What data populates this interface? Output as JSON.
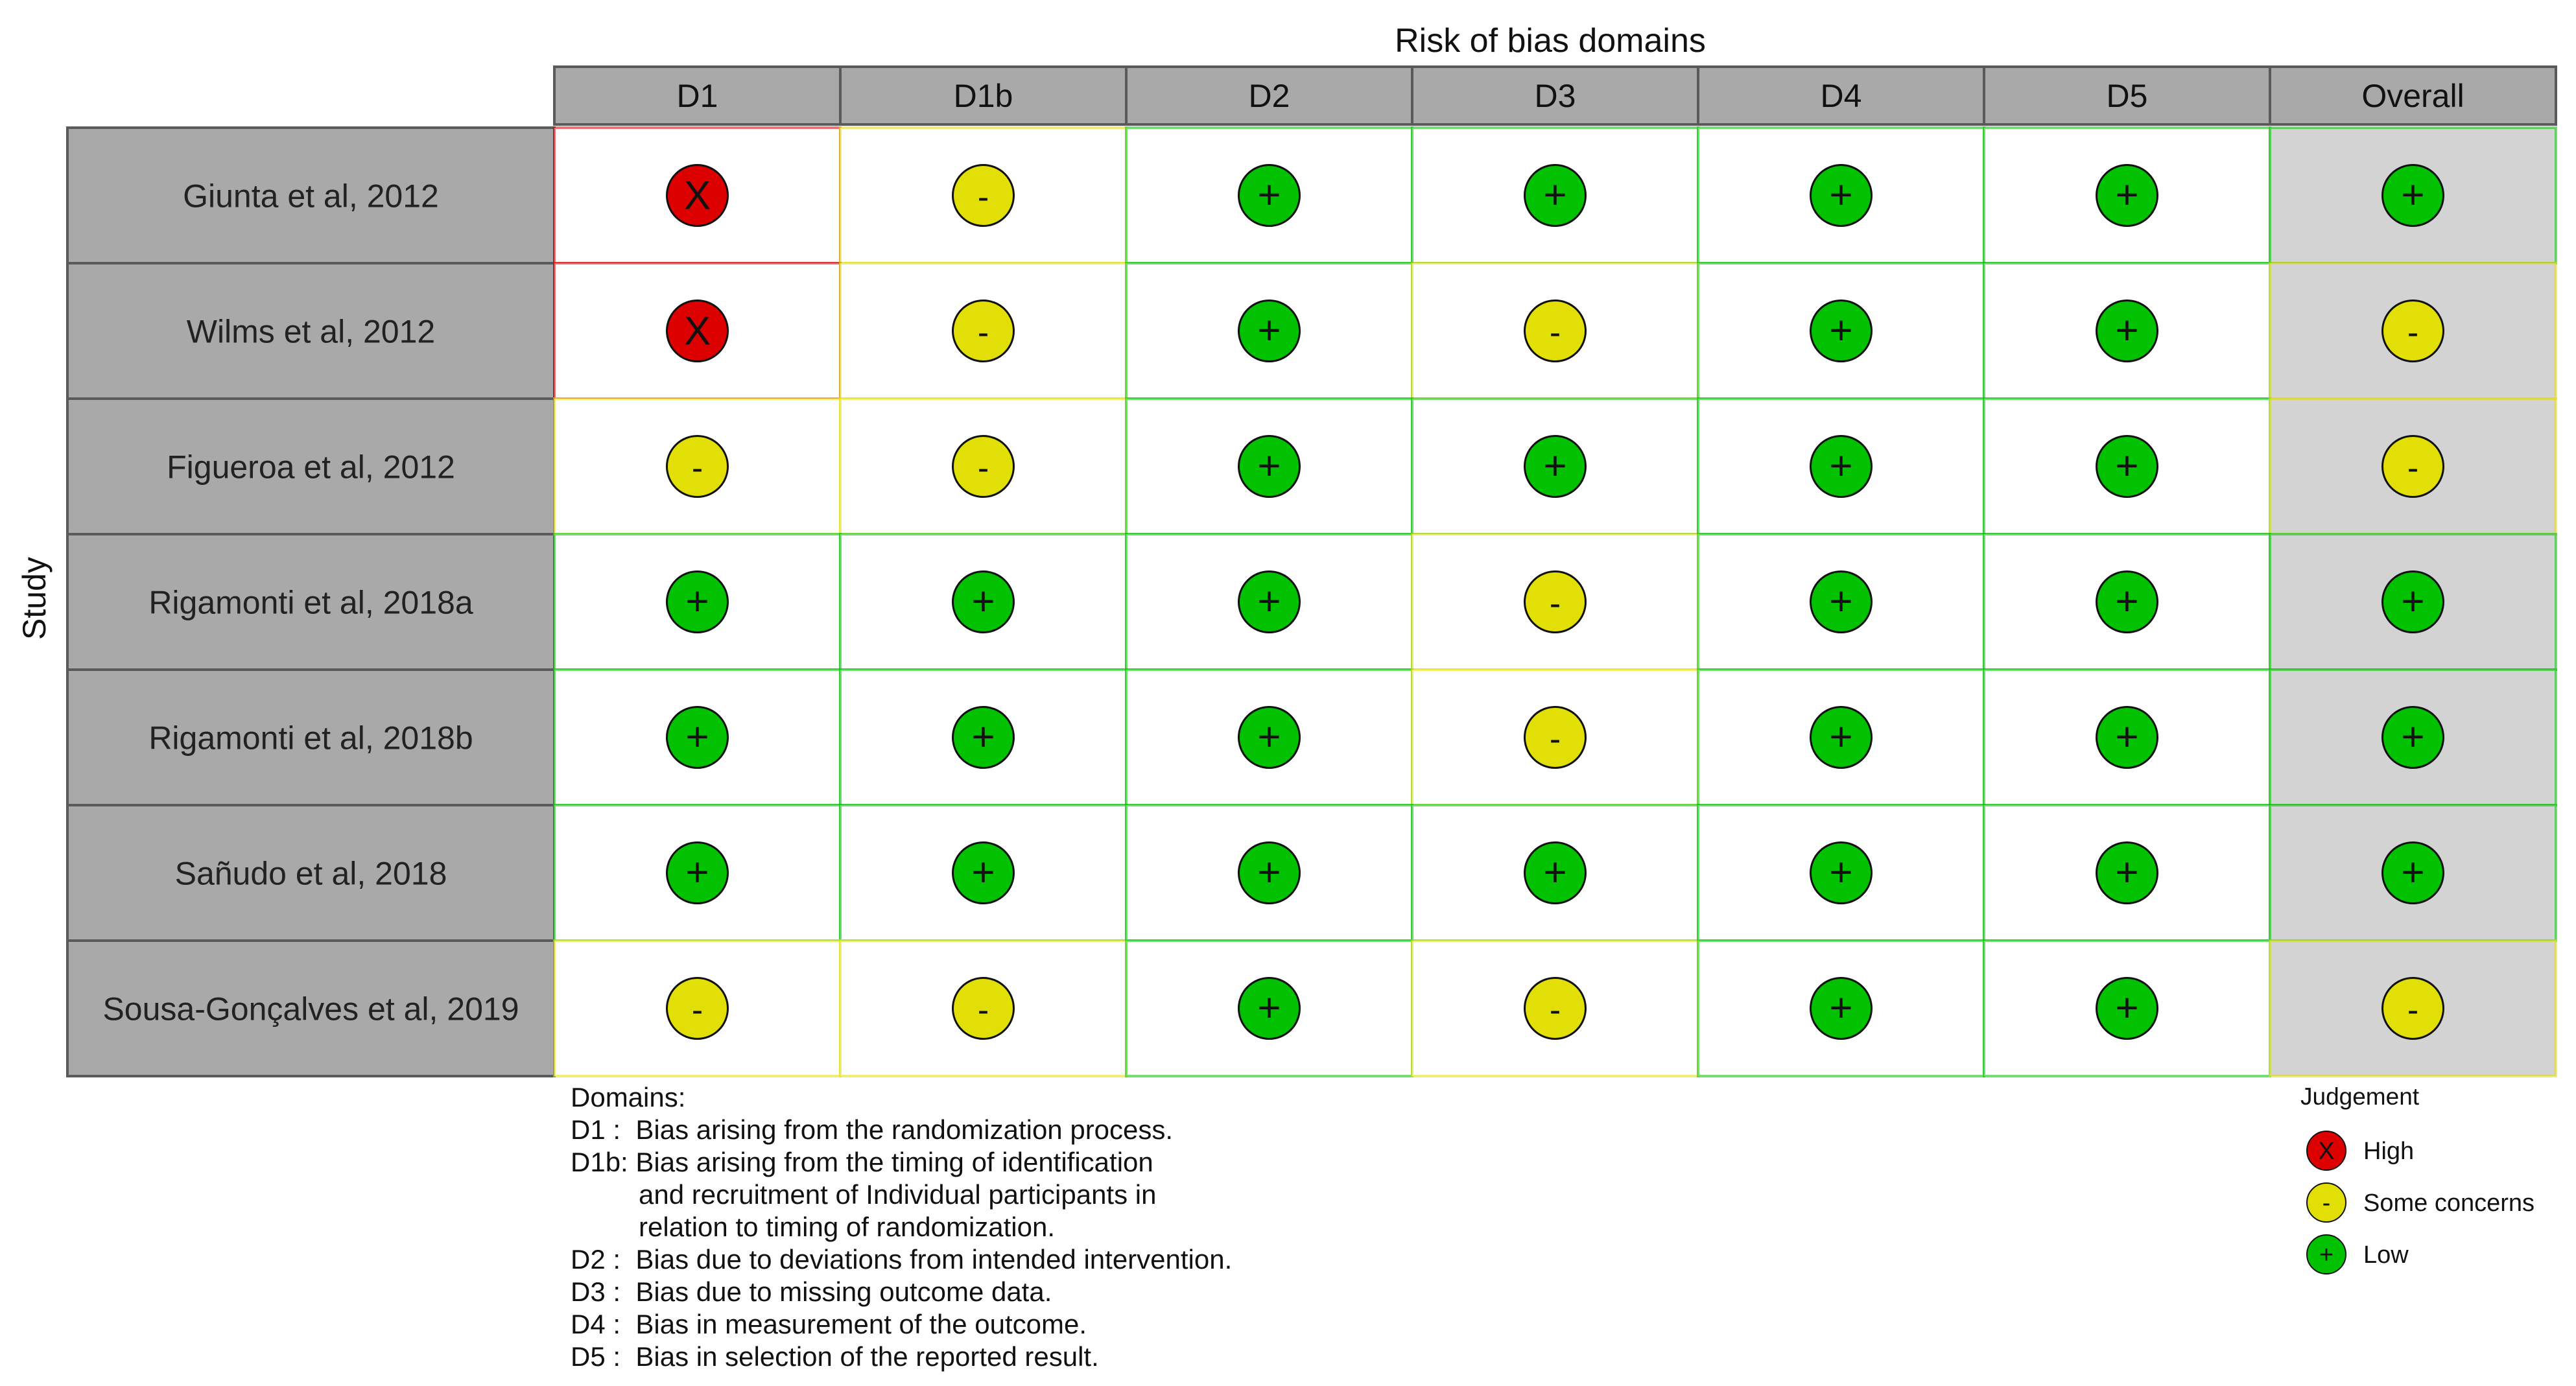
{
  "chart_data": {
    "type": "table",
    "title": "Risk of bias domains",
    "ylabel": "Study",
    "columns": [
      "D1",
      "D1b",
      "D2",
      "D3",
      "D4",
      "D5",
      "Overall"
    ],
    "studies": [
      "Giunta et al, 2012",
      "Wilms et al, 2012",
      "Figueroa et al, 2012",
      "Rigamonti et al, 2018a",
      "Rigamonti et al, 2018b",
      "Sañudo et al, 2018",
      "Sousa-Gonçalves et al, 2019"
    ],
    "judgements": [
      [
        "high",
        "some",
        "low",
        "low",
        "low",
        "low",
        "low"
      ],
      [
        "high",
        "some",
        "low",
        "some",
        "low",
        "low",
        "some"
      ],
      [
        "some",
        "some",
        "low",
        "low",
        "low",
        "low",
        "some"
      ],
      [
        "low",
        "low",
        "low",
        "some",
        "low",
        "low",
        "low"
      ],
      [
        "low",
        "low",
        "low",
        "some",
        "low",
        "low",
        "low"
      ],
      [
        "low",
        "low",
        "low",
        "low",
        "low",
        "low",
        "low"
      ],
      [
        "some",
        "some",
        "low",
        "some",
        "low",
        "low",
        "some"
      ]
    ],
    "symbols": {
      "high": "X",
      "some": "-",
      "low": "+"
    },
    "colors": {
      "high": "#dd0000",
      "some": "#e2df07",
      "low": "#02c100",
      "header_fill": "#a9a9a9",
      "overall_fill": "#d3d3d3",
      "study_fill": "#a9a9a9"
    },
    "domains_title": "Domains:",
    "domain_descriptions": [
      "D1 :  Bias arising from the randomization process.",
      "D1b: Bias arising from the timing of identification",
      "         and recruitment of Individual participants in",
      "         relation to timing of randomization.",
      "D2 :  Bias due to deviations from intended intervention.",
      "D3 :  Bias due to missing outcome data.",
      "D4 :  Bias in measurement of the outcome.",
      "D5 :  Bias in selection of the reported result."
    ],
    "legend": {
      "title": "Judgement",
      "items": [
        {
          "key": "high",
          "label": "High"
        },
        {
          "key": "some",
          "label": "Some concerns"
        },
        {
          "key": "low",
          "label": "Low"
        }
      ]
    }
  }
}
